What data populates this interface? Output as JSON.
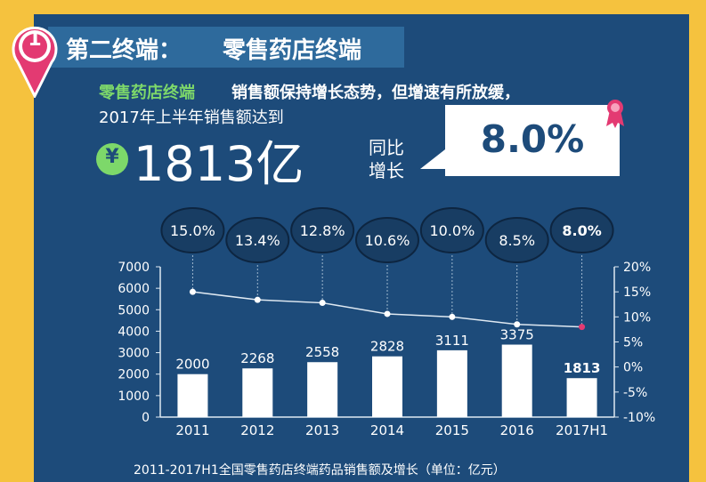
{
  "header": {
    "badge_number": "1",
    "title_prefix": "第二终端：",
    "title_main": "零售药店终端"
  },
  "intro": {
    "line1_highlight": "零售药店终端",
    "line1_rest": "销售额保持增长态势，但增速有所放缓，",
    "line2": "2017年上半年销售额达到",
    "currency": "¥",
    "big_value": "1813亿",
    "yoy_label_1": "同比",
    "yoy_label_2": "增长",
    "yoy_value": "8.0%"
  },
  "colors": {
    "background": "#f5c23e",
    "panel": "#1d4b7a",
    "title_bar": "#2e6a9c",
    "accent_green": "#7dd86a",
    "badge": "#e33a72",
    "bars": "#ffffff",
    "line": "#dfe9f2"
  },
  "chart_data": {
    "type": "bar",
    "categories": [
      "2011",
      "2012",
      "2013",
      "2014",
      "2015",
      "2016",
      "2017H1"
    ],
    "series": [
      {
        "values": [
          2000,
          2268,
          2558,
          2828,
          3111,
          3375,
          1813
        ]
      },
      {
        "values": [
          15.0,
          13.4,
          12.8,
          10.6,
          10.0,
          8.5,
          8.0
        ]
      }
    ],
    "value_labels": [
      "2000",
      "2268",
      "2558",
      "2828",
      "3111",
      "3375",
      "1813"
    ],
    "growth_labels": [
      "15.0%",
      "13.4%",
      "12.8%",
      "10.6%",
      "10.0%",
      "8.5%",
      "8.0%"
    ],
    "ylim": [
      0,
      7000
    ],
    "y_ticks": [
      "0",
      "1000",
      "2000",
      "3000",
      "4000",
      "5000",
      "6000",
      "7000"
    ],
    "y2lim": [
      -10,
      20
    ],
    "y2_ticks": [
      "-10%",
      "-5%",
      "0%",
      "5%",
      "10%",
      "15%",
      "20%"
    ],
    "caption": "2011-2017H1全国零售药店终端药品销售额及增长（单位：亿元）",
    "grid": false
  }
}
